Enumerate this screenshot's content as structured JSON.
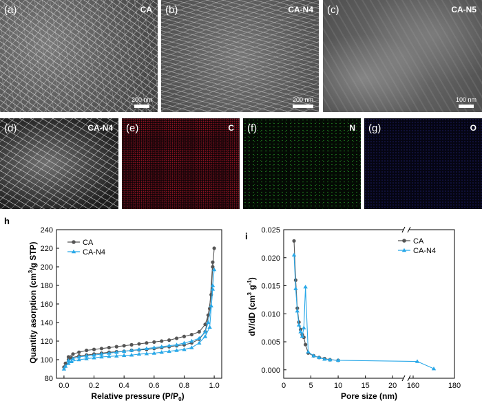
{
  "panels": [
    {
      "label": "(a)",
      "tag": "CA",
      "scale": "200 nm"
    },
    {
      "label": "(b)",
      "tag": "CA-N4",
      "scale": "200 nm"
    },
    {
      "label": "(c)",
      "tag": "CA-N5",
      "scale": "100 nm"
    },
    {
      "label": "(d)",
      "tag": "CA-N4"
    },
    {
      "label": "(e)",
      "tag": "C"
    },
    {
      "label": "(f)",
      "tag": "N"
    },
    {
      "label": "(g)",
      "tag": "O"
    }
  ],
  "chart_data": [
    {
      "panel_label": "h",
      "type": "line",
      "xlabel": "Relative pressure (P/P",
      "xlabel_sub": "0",
      "xlabel_end": ")",
      "ylabel": "Quantity asorption (cm",
      "ylabel_sup": "3",
      "ylabel_end": "/g STP)",
      "xlim": [
        -0.05,
        1.05
      ],
      "ylim": [
        80,
        240
      ],
      "xticks": [
        "0.0",
        "0.2",
        "0.4",
        "0.6",
        "0.8",
        "1.0"
      ],
      "yticks": [
        "80",
        "100",
        "120",
        "140",
        "160",
        "180",
        "200",
        "220",
        "240"
      ],
      "legend_position": "top-left",
      "series": [
        {
          "name": "CA",
          "color": "#555555",
          "marker": "circle",
          "branch": "desorption",
          "x": [
            1.0,
            0.99,
            0.98,
            0.96,
            0.94,
            0.9,
            0.85,
            0.8,
            0.75,
            0.7,
            0.65,
            0.6,
            0.55,
            0.5,
            0.45,
            0.4,
            0.35,
            0.3,
            0.25,
            0.2,
            0.15,
            0.1,
            0.06,
            0.03
          ],
          "y": [
            220,
            200,
            170,
            148,
            138,
            130,
            127,
            125,
            123,
            121,
            120,
            119,
            118,
            117,
            116,
            115,
            114,
            113,
            112,
            111,
            110,
            108,
            106,
            103
          ]
        },
        {
          "name": "",
          "color": "#555555",
          "marker": "circle",
          "branch": "adsorption",
          "x": [
            0.0,
            0.01,
            0.03,
            0.05,
            0.1,
            0.15,
            0.2,
            0.25,
            0.3,
            0.35,
            0.4,
            0.45,
            0.5,
            0.55,
            0.6,
            0.65,
            0.7,
            0.75,
            0.8,
            0.85,
            0.9,
            0.94,
            0.97,
            0.99
          ],
          "y": [
            92,
            96,
            100,
            102,
            104,
            105,
            106,
            107,
            108,
            108.5,
            109,
            110,
            110.5,
            111,
            112,
            113,
            114,
            115,
            116,
            118,
            122,
            130,
            155,
            205
          ]
        },
        {
          "name": "CA-N4",
          "color": "#29a8e8",
          "marker": "triangle",
          "branch": "desorption",
          "x": [
            1.0,
            0.99,
            0.98,
            0.96,
            0.94,
            0.9,
            0.85,
            0.8,
            0.75,
            0.7,
            0.65,
            0.6,
            0.55,
            0.5,
            0.45,
            0.4,
            0.35,
            0.3,
            0.25,
            0.2,
            0.15,
            0.1,
            0.06,
            0.03
          ],
          "y": [
            197,
            180,
            158,
            140,
            130,
            123,
            120,
            118,
            116,
            115,
            114,
            113,
            112,
            111,
            110,
            109,
            108,
            107,
            106,
            105,
            104,
            103,
            101,
            99
          ]
        },
        {
          "name": "",
          "color": "#29a8e8",
          "marker": "triangle",
          "branch": "adsorption",
          "x": [
            0.0,
            0.01,
            0.03,
            0.05,
            0.1,
            0.15,
            0.2,
            0.25,
            0.3,
            0.35,
            0.4,
            0.45,
            0.5,
            0.55,
            0.6,
            0.65,
            0.7,
            0.75,
            0.8,
            0.85,
            0.9,
            0.94,
            0.97,
            0.99
          ],
          "y": [
            90,
            93,
            96,
            98,
            100,
            101,
            102,
            103,
            103.5,
            104,
            104.5,
            105,
            106,
            106.5,
            107,
            108,
            109,
            110,
            111,
            113,
            118,
            125,
            135,
            176
          ]
        }
      ]
    },
    {
      "panel_label": "i",
      "type": "line",
      "xlabel": "Pore size (nm)",
      "ylabel": "dV/dD (cm",
      "ylabel_sup": "3",
      "ylabel_end": " g",
      "ylabel_sup2": "-1",
      "ylabel_close": ")",
      "x_axis_break": true,
      "xlim_segment1": [
        0,
        22
      ],
      "xlim_segment2": [
        158,
        180
      ],
      "ylim": [
        -0.0015,
        0.025
      ],
      "xticks": [
        "0",
        "5",
        "10",
        "15",
        "20",
        "160",
        "180"
      ],
      "yticks": [
        "0.000",
        "0.005",
        "0.010",
        "0.015",
        "0.020",
        "0.025"
      ],
      "legend_position": "top-right",
      "series": [
        {
          "name": "CA",
          "color": "#555555",
          "marker": "circle",
          "x": [
            1.9,
            2.2,
            2.5,
            2.8,
            3.1,
            3.4,
            3.7,
            4.0,
            4.5,
            5.5,
            6.5,
            7.5,
            8.5,
            10
          ],
          "y": [
            0.023,
            0.016,
            0.011,
            0.0085,
            0.0072,
            0.0063,
            0.0058,
            0.0045,
            0.003,
            0.0025,
            0.0022,
            0.002,
            0.0018,
            0.0017
          ]
        },
        {
          "name": "CA-N4",
          "color": "#29a8e8",
          "marker": "triangle",
          "x": [
            1.9,
            2.2,
            2.5,
            2.8,
            3.1,
            3.4,
            3.7,
            4.0,
            4.5,
            5.5,
            6.5,
            7.5,
            8.5,
            10,
            162,
            170
          ],
          "y": [
            0.0205,
            0.0145,
            0.0105,
            0.008,
            0.0068,
            0.006,
            0.0075,
            0.0148,
            0.0032,
            0.0025,
            0.0022,
            0.0019,
            0.0018,
            0.0017,
            0.0015,
            0.0002
          ]
        }
      ]
    }
  ]
}
